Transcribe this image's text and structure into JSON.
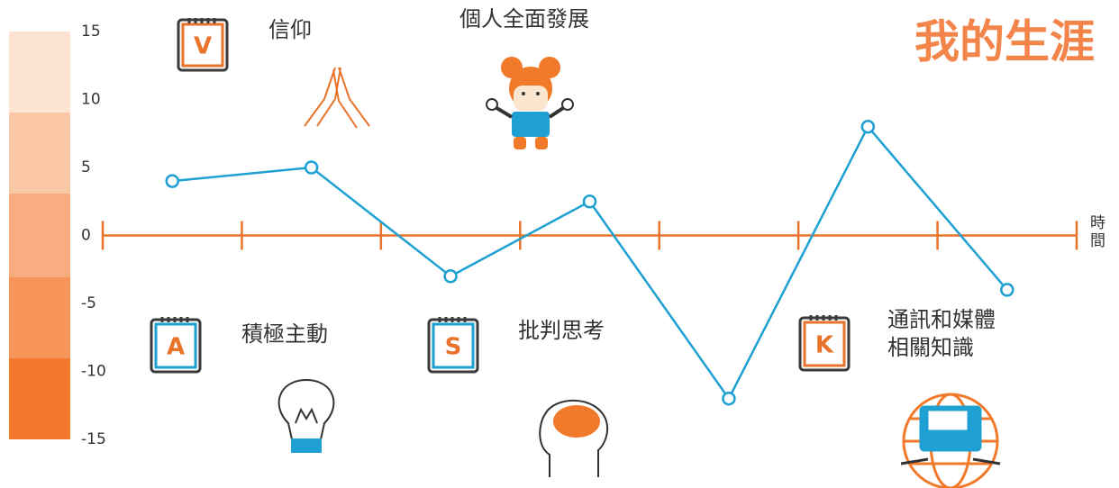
{
  "chart_data": {
    "type": "line",
    "title": "我的生涯",
    "x_label": "時間",
    "categories": [
      null,
      null,
      null,
      null,
      null,
      null,
      null
    ],
    "values": [
      4,
      5,
      -3,
      2.5,
      -12,
      8,
      -4
    ],
    "color": "#1ea0d2",
    "axis_color": "#e8732a",
    "ylim": [
      -15,
      15
    ],
    "yticks": [
      15,
      10,
      5,
      0,
      -5,
      -10,
      -15
    ],
    "annotations": [
      {
        "badge": "V",
        "label": "信仰"
      },
      {
        "label": "個人全面發展"
      },
      {
        "badge": "A",
        "label": "積極主動"
      },
      {
        "badge": "S",
        "label": "批判思考"
      },
      {
        "badge": "K",
        "label": "通訊和媒體相關知識"
      }
    ]
  }
}
